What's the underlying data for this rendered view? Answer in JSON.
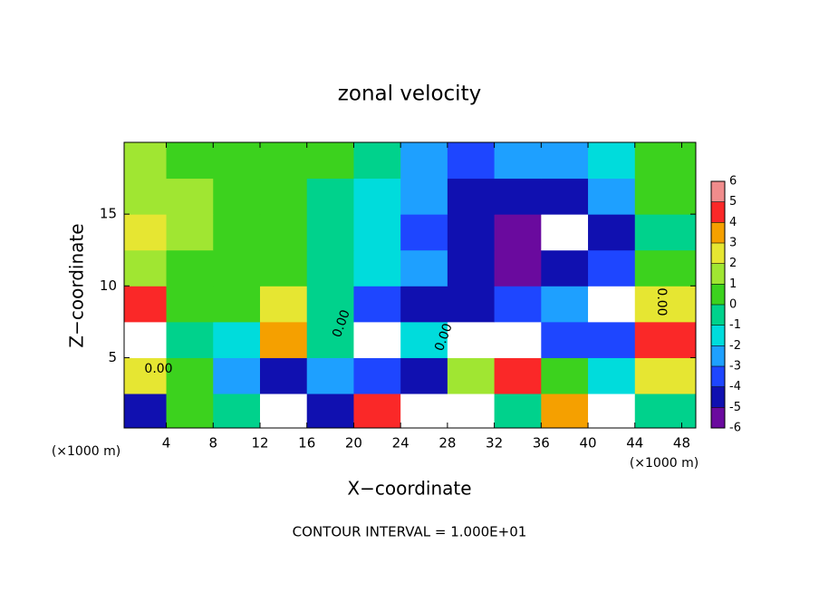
{
  "chart_data": {
    "type": "contour",
    "title": "zonal velocity",
    "x_label": "X−coordinate",
    "y_label": "Z−coordinate",
    "x_unit": "(×1000 m)",
    "footer": "CONTOUR INTERVAL = 1.000E+01",
    "annotations": [
      "0.00",
      "0.00",
      "0.00",
      "0.00"
    ],
    "xlim": [
      0.4,
      49.2
    ],
    "ylim": [
      0.1,
      20
    ],
    "xticks": [
      4,
      8,
      12,
      16,
      20,
      24,
      28,
      32,
      36,
      40,
      44,
      48
    ],
    "yticks": [
      5,
      10,
      15
    ],
    "x_edges": [
      0.4,
      4,
      8,
      12,
      16,
      20,
      24,
      28,
      32,
      36,
      40,
      44,
      49.2
    ],
    "y_edges": [
      0.1,
      2.5,
      5,
      7.5,
      10,
      12.5,
      15,
      17.5,
      20
    ],
    "z": [
      [
        -4,
        1,
        0,
        7,
        -4,
        5,
        7,
        7,
        0,
        4,
        7,
        0
      ],
      [
        3,
        0.5,
        -2,
        -4,
        -2,
        -3,
        -4,
        2,
        5,
        1,
        -1,
        3
      ],
      [
        7,
        0,
        -1,
        4,
        -0.5,
        -7,
        -1,
        7,
        7,
        -3,
        -3,
        5
      ],
      [
        5,
        0.8,
        0.2,
        3,
        -0.5,
        -3,
        -4,
        -4.5,
        -3,
        -2,
        -7,
        3
      ],
      [
        1.5,
        1,
        0.7,
        0.4,
        0,
        -1,
        -2.5,
        -4,
        -5,
        -4,
        -3,
        0.5
      ],
      [
        2.5,
        1.5,
        0.8,
        0.4,
        0,
        -1.5,
        -3,
        -4.5,
        -5.5,
        -7,
        -4,
        0
      ],
      [
        2,
        1.5,
        0.8,
        0.5,
        0,
        -1,
        -2.5,
        -4,
        -4.5,
        -4,
        -2,
        0.5
      ],
      [
        1.5,
        1,
        0.5,
        0.3,
        0.2,
        -0.5,
        -2,
        -3,
        -2.5,
        -2,
        -1,
        0.3
      ]
    ],
    "colorbar": {
      "levels": [
        -6,
        -5,
        -4,
        -3,
        -2,
        -1,
        0,
        1,
        2,
        3,
        4,
        5,
        6
      ],
      "colors": [
        "#6a0a9e",
        "#1010b0",
        "#1e46ff",
        "#1ea0ff",
        "#00dcdc",
        "#00d28c",
        "#3cd21e",
        "#a0e632",
        "#e6e632",
        "#f5a000",
        "#fa2828",
        "#f08c8c"
      ]
    }
  }
}
